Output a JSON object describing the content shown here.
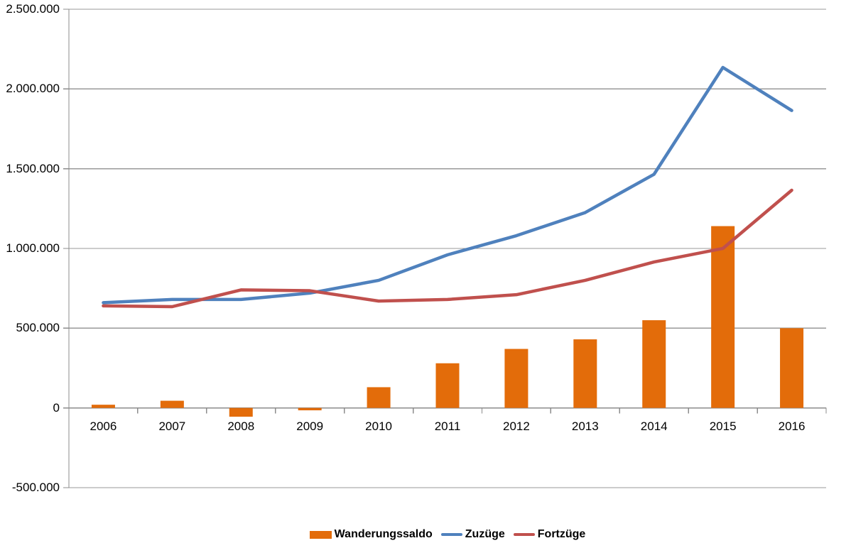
{
  "chart_data": {
    "type": "combo",
    "title": "",
    "categories": [
      "2006",
      "2007",
      "2008",
      "2009",
      "2010",
      "2011",
      "2012",
      "2013",
      "2014",
      "2015",
      "2016"
    ],
    "series": [
      {
        "name": "Wanderungssaldo",
        "type": "bar",
        "color": "#E36C0A",
        "values": [
          20000,
          45000,
          -55000,
          -15000,
          130000,
          280000,
          370000,
          430000,
          550000,
          1140000,
          500000
        ]
      },
      {
        "name": "Zuzüge",
        "type": "line",
        "color": "#4F81BD",
        "values": [
          660000,
          680000,
          680000,
          720000,
          800000,
          960000,
          1080000,
          1225000,
          1465000,
          2135000,
          1865000
        ]
      },
      {
        "name": "Fortzüge",
        "type": "line",
        "color": "#C0504D",
        "values": [
          640000,
          635000,
          740000,
          735000,
          670000,
          680000,
          710000,
          800000,
          915000,
          1000000,
          1365000
        ]
      }
    ],
    "y_axis": {
      "min": -500000,
      "max": 2500000,
      "step": 500000,
      "tick_labels": [
        "2.500.000",
        "2.000.000",
        "1.500.000",
        "1.000.000",
        "500.000",
        "0",
        "-500.000"
      ]
    },
    "xlabel": "",
    "ylabel": "",
    "grid": true,
    "legend_position": "bottom",
    "colors": {
      "background": "#FFFFFF",
      "gridline": "#999999",
      "axis": "#8C8C8C",
      "text": "#000000"
    }
  }
}
